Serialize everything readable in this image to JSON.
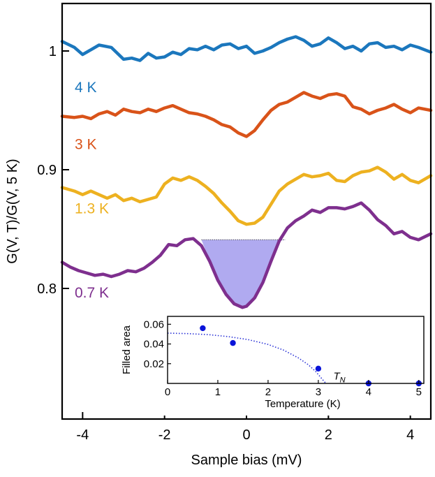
{
  "chart_data": [
    {
      "type": "line",
      "xlabel": "Sample bias (mV)",
      "ylabel": "G(V, T)/G(V, 5 K)",
      "xlim": [
        -4.5,
        4.5
      ],
      "ylim": [
        0.69,
        1.04
      ],
      "x_ticks": [
        "-4",
        "-2",
        "0",
        "2",
        "4"
      ],
      "y_ticks": [
        "0.8",
        "0.9",
        "1"
      ],
      "x_tick_values": [
        -4,
        -2,
        0,
        2,
        4
      ],
      "y_tick_values": [
        0.8,
        0.9,
        1.0
      ],
      "grid": false,
      "series": [
        {
          "name": "4 K",
          "color": "#1b77bd",
          "x": [
            -4.5,
            -4.2,
            -4.0,
            -3.8,
            -3.6,
            -3.3,
            -3.0,
            -2.8,
            -2.6,
            -2.4,
            -2.2,
            -2.0,
            -1.8,
            -1.6,
            -1.4,
            -1.2,
            -1.0,
            -0.8,
            -0.6,
            -0.4,
            -0.2,
            0.0,
            0.2,
            0.4,
            0.6,
            0.8,
            1.0,
            1.2,
            1.4,
            1.6,
            1.8,
            2.0,
            2.2,
            2.4,
            2.6,
            2.8,
            3.0,
            3.2,
            3.4,
            3.6,
            3.8,
            4.0,
            4.2,
            4.5
          ],
          "y": [
            1.008,
            1.003,
            0.997,
            1.001,
            1.005,
            1.003,
            0.993,
            0.994,
            0.992,
            0.998,
            0.994,
            0.995,
            0.999,
            0.997,
            1.002,
            1.001,
            1.004,
            1.001,
            1.005,
            1.006,
            1.002,
            1.004,
            0.998,
            1.0,
            1.003,
            1.007,
            1.01,
            1.012,
            1.009,
            1.004,
            1.006,
            1.011,
            1.007,
            1.002,
            1.004,
            1.0,
            1.006,
            1.007,
            1.003,
            1.004,
            1.001,
            1.005,
            1.003,
            0.999
          ]
        },
        {
          "name": "3 K",
          "color": "#d95319",
          "x": [
            -4.5,
            -4.2,
            -4.0,
            -3.8,
            -3.6,
            -3.4,
            -3.2,
            -3.0,
            -2.8,
            -2.6,
            -2.4,
            -2.2,
            -2.0,
            -1.8,
            -1.6,
            -1.4,
            -1.2,
            -1.0,
            -0.8,
            -0.6,
            -0.4,
            -0.2,
            0.0,
            0.2,
            0.4,
            0.6,
            0.8,
            1.0,
            1.2,
            1.4,
            1.6,
            1.8,
            2.0,
            2.2,
            2.4,
            2.6,
            2.8,
            3.0,
            3.2,
            3.4,
            3.6,
            3.8,
            4.0,
            4.2,
            4.5
          ],
          "y": [
            0.945,
            0.944,
            0.945,
            0.943,
            0.947,
            0.949,
            0.946,
            0.951,
            0.949,
            0.948,
            0.951,
            0.949,
            0.952,
            0.954,
            0.951,
            0.948,
            0.947,
            0.945,
            0.942,
            0.938,
            0.936,
            0.931,
            0.928,
            0.933,
            0.942,
            0.95,
            0.955,
            0.957,
            0.961,
            0.965,
            0.962,
            0.96,
            0.963,
            0.964,
            0.962,
            0.953,
            0.951,
            0.947,
            0.95,
            0.952,
            0.955,
            0.951,
            0.948,
            0.952,
            0.95
          ]
        },
        {
          "name": "1.3 K",
          "color": "#edb120",
          "x": [
            -4.5,
            -4.2,
            -4.0,
            -3.8,
            -3.6,
            -3.4,
            -3.2,
            -3.0,
            -2.8,
            -2.6,
            -2.4,
            -2.2,
            -2.0,
            -1.8,
            -1.6,
            -1.4,
            -1.2,
            -1.0,
            -0.8,
            -0.6,
            -0.4,
            -0.2,
            0.0,
            0.2,
            0.4,
            0.6,
            0.8,
            1.0,
            1.2,
            1.4,
            1.6,
            1.8,
            2.0,
            2.2,
            2.4,
            2.6,
            2.8,
            3.0,
            3.2,
            3.4,
            3.6,
            3.8,
            4.0,
            4.2,
            4.5
          ],
          "y": [
            0.885,
            0.882,
            0.879,
            0.882,
            0.879,
            0.876,
            0.879,
            0.874,
            0.876,
            0.873,
            0.875,
            0.877,
            0.888,
            0.893,
            0.891,
            0.894,
            0.891,
            0.886,
            0.88,
            0.872,
            0.865,
            0.857,
            0.854,
            0.855,
            0.86,
            0.871,
            0.882,
            0.888,
            0.892,
            0.896,
            0.894,
            0.895,
            0.897,
            0.891,
            0.89,
            0.895,
            0.898,
            0.899,
            0.902,
            0.898,
            0.892,
            0.896,
            0.891,
            0.889,
            0.895
          ]
        },
        {
          "name": "0.7 K",
          "color": "#7e2f8e",
          "x": [
            -4.5,
            -4.3,
            -4.1,
            -3.9,
            -3.7,
            -3.5,
            -3.3,
            -3.1,
            -2.9,
            -2.7,
            -2.5,
            -2.3,
            -2.1,
            -1.9,
            -1.7,
            -1.5,
            -1.3,
            -1.1,
            -0.9,
            -0.7,
            -0.5,
            -0.3,
            -0.1,
            0.0,
            0.2,
            0.4,
            0.6,
            0.8,
            1.0,
            1.2,
            1.4,
            1.6,
            1.8,
            2.0,
            2.2,
            2.4,
            2.6,
            2.8,
            3.0,
            3.2,
            3.4,
            3.6,
            3.8,
            4.0,
            4.2,
            4.5
          ],
          "y": [
            0.822,
            0.818,
            0.815,
            0.813,
            0.811,
            0.812,
            0.81,
            0.812,
            0.815,
            0.814,
            0.817,
            0.822,
            0.828,
            0.837,
            0.836,
            0.841,
            0.842,
            0.836,
            0.823,
            0.807,
            0.795,
            0.787,
            0.784,
            0.785,
            0.792,
            0.805,
            0.823,
            0.84,
            0.851,
            0.857,
            0.861,
            0.866,
            0.864,
            0.868,
            0.868,
            0.867,
            0.869,
            0.872,
            0.866,
            0.858,
            0.853,
            0.846,
            0.848,
            0.843,
            0.841,
            0.846
          ]
        }
      ],
      "filled_region": {
        "color": "#b0aaf0",
        "x_start": -1.1,
        "x_end": 0.95,
        "level": 0.841
      }
    },
    {
      "type": "scatter",
      "title": "",
      "xlabel": "Temperature (K)",
      "ylabel": "Filled area",
      "xlim": [
        0,
        5.1
      ],
      "ylim": [
        0,
        0.068
      ],
      "x_ticks": [
        "0",
        "1",
        "2",
        "3",
        "4",
        "5"
      ],
      "y_ticks": [
        "0.02",
        "0.04",
        "0.06"
      ],
      "x_tick_values": [
        0,
        1,
        2,
        3,
        4,
        5
      ],
      "y_tick_values": [
        0.02,
        0.04,
        0.06
      ],
      "point_color": "#0a14d9",
      "points": {
        "x": [
          0.7,
          1.3,
          3.0,
          4.0,
          5.0
        ],
        "y": [
          0.056,
          0.041,
          0.015,
          0.0,
          0.0
        ]
      },
      "fit_line": {
        "style": "dotted",
        "color": "#2a32d6",
        "x": [
          0.0,
          0.4,
          0.8,
          1.2,
          1.6,
          2.0,
          2.3,
          2.6,
          2.8,
          2.95,
          3.05,
          3.1,
          3.15
        ],
        "y": [
          0.051,
          0.0505,
          0.0495,
          0.0475,
          0.0445,
          0.0395,
          0.034,
          0.026,
          0.019,
          0.012,
          0.006,
          0.003,
          0.0
        ]
      },
      "annotation": {
        "label": "T",
        "subscript": "N",
        "x": 3.3,
        "y": 0.008
      }
    }
  ]
}
